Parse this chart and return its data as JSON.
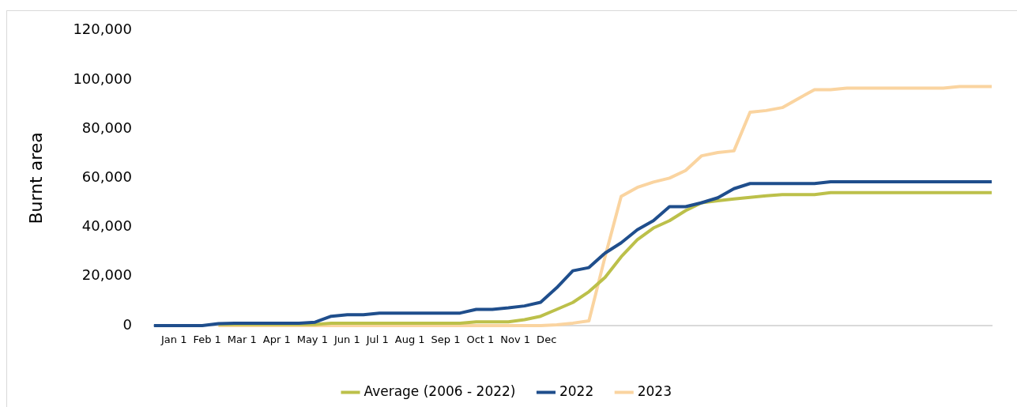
{
  "chart_data": {
    "type": "line",
    "ylabel": "Burnt area",
    "categories": [
      null,
      null,
      null,
      null,
      null,
      null,
      null,
      null,
      null,
      null,
      null,
      null,
      null,
      null,
      null,
      null,
      null,
      null,
      null,
      null,
      null,
      null,
      null,
      null,
      null,
      null,
      null,
      null,
      null,
      null,
      null,
      null,
      null,
      null,
      null,
      null,
      null,
      null,
      null,
      null,
      null,
      null,
      null,
      null,
      null,
      null,
      null,
      null,
      null,
      null,
      null,
      null,
      null
    ],
    "series": [
      {
        "name": "Average (2006 - 2022)",
        "color": "#bcc04a",
        "values": [
          null,
          null,
          null,
          null,
          500,
          500,
          500,
          500,
          500,
          500,
          500,
          1000,
          1000,
          1000,
          1000,
          1000,
          1000,
          1000,
          1000,
          1000,
          1500,
          1500,
          1500,
          2400,
          3800,
          6600,
          9400,
          13800,
          19600,
          28000,
          34900,
          39700,
          42700,
          46800,
          50000,
          50800,
          51500,
          52200,
          52800,
          53300,
          53300,
          53300,
          54100,
          54100,
          54100,
          54100,
          54100,
          54100,
          54100,
          54100,
          54100,
          54100,
          54100
        ]
      },
      {
        "name": "2022",
        "color": "#1f4e8c",
        "values": [
          0,
          0,
          0,
          0,
          800,
          1000,
          1000,
          1000,
          1000,
          1000,
          1400,
          3800,
          4400,
          4400,
          5100,
          5100,
          5100,
          5100,
          5100,
          5100,
          6600,
          6600,
          7200,
          8000,
          9500,
          15400,
          22300,
          23600,
          29500,
          33700,
          39000,
          42700,
          48400,
          48400,
          50000,
          52000,
          55700,
          57800,
          57800,
          57800,
          57800,
          57800,
          58500,
          58500,
          58500,
          58500,
          58500,
          58500,
          58500,
          58500,
          58500,
          58500,
          58500
        ]
      },
      {
        "name": "2023",
        "color": "#fad4a0",
        "values": [
          null,
          null,
          null,
          null,
          0,
          0,
          0,
          0,
          0,
          0,
          0,
          0,
          0,
          0,
          0,
          0,
          0,
          0,
          0,
          0,
          0,
          0,
          0,
          0,
          0,
          300,
          1000,
          1900,
          28000,
          52600,
          56200,
          58400,
          60000,
          63100,
          69100,
          70400,
          71100,
          86800,
          87500,
          88700,
          92400,
          96000,
          96000,
          96600,
          96600,
          96600,
          96600,
          96600,
          96600,
          96600,
          97300,
          97300,
          97300
        ]
      }
    ],
    "ylim": [
      0,
      120000
    ],
    "yticks": [
      0,
      {
        "value": 20000,
        "label": "20,000"
      },
      {
        "value": 40000,
        "label": "40,000"
      },
      {
        "value": 60000,
        "label": "60,000"
      },
      {
        "value": 80000,
        "label": "80,000"
      },
      {
        "value": 100000,
        "label": "100,000"
      },
      {
        "value": 120000,
        "label": "120,000"
      }
    ],
    "grid": false,
    "legend": "bottom",
    "marker": "none",
    "line_style": "solid",
    "annotations": [
      "Jan 1",
      "Feb 1",
      "Mar 1",
      "Apr 1",
      "May 1",
      "Jun 1",
      "Jul 1",
      "Aug 1",
      "Sep 1",
      "Oct 1",
      "Nov 1",
      "Dec"
    ]
  }
}
